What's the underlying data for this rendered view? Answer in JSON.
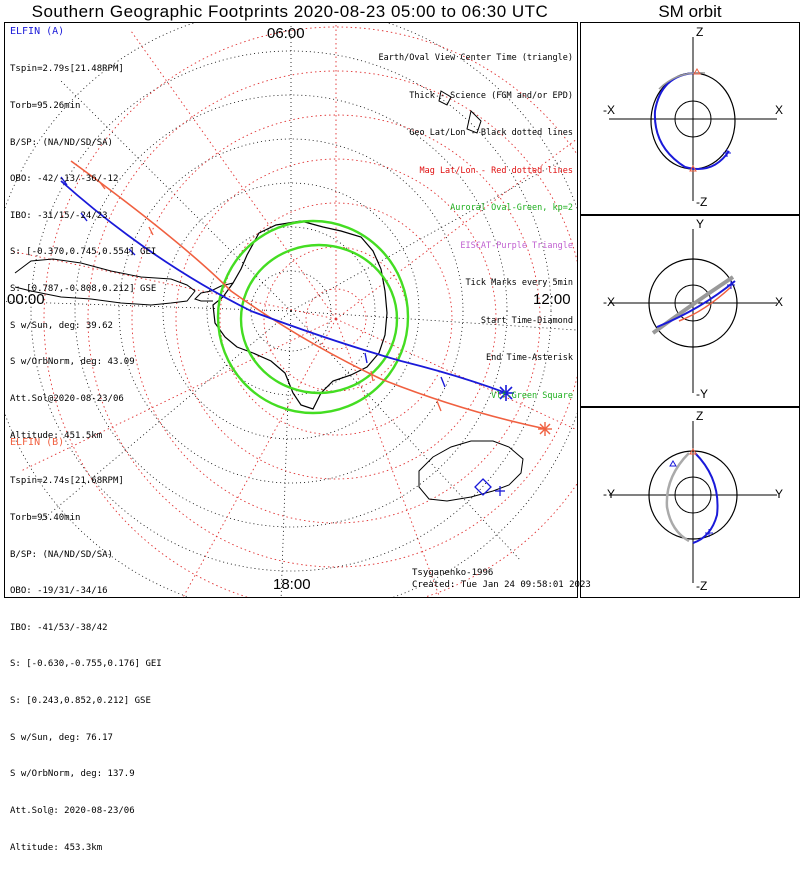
{
  "title": "Southern Geographic Footprints 2020-08-23 05:00 to 06:30 UTC",
  "sm_title": "SM orbit",
  "mlt_labels": {
    "top": "06:00",
    "left": "00:00",
    "right": "12:00",
    "bottom": "18:00"
  },
  "elfin_a": {
    "name": "ELFIN (A)",
    "color": "#1a1ad9",
    "lines": [
      "Tspin=2.79s[21.48RPM]",
      "Torb=95.26min",
      "B/SP: (NA/ND/SD/SA)",
      "OBO: -42/-13/-36/-12",
      "IBO: -31/15/-24/23",
      "S: [-0.370,0.745,0.554] GEI",
      "S: [0.787,-0.808,0.212] GSE",
      "S w/Sun, deg: 39.62",
      "S w/OrbNorm, deg: 43.09",
      "Att.Sol@2020-08-23/06",
      "Altitude: 451.5km"
    ]
  },
  "elfin_b": {
    "name": "ELFIN (B)",
    "color": "#f06040",
    "lines": [
      "Tspin=2.74s[21.68RPM]",
      "Torb=95.40min",
      "B/SP: (NA/ND/SD/SA)",
      "OBO: -19/31/-34/16",
      "IBO: -41/53/-38/42",
      "S: [-0.630,-0.755,0.176] GEI",
      "S: [0.243,0.852,0.212] GSE",
      "S w/Sun, deg: 76.17",
      "S w/OrbNorm, deg: 137.9",
      "Att.Sol@: 2020-08-23/06",
      "Altitude: 453.3km"
    ]
  },
  "legend": [
    {
      "text": "Earth/Oval View Center Time (triangle)",
      "color": "#000000"
    },
    {
      "text": "Thick - Science (FGM and/or EPD)",
      "color": "#000000"
    },
    {
      "text": "Geo Lat/Lon - Black dotted lines",
      "color": "#000000"
    },
    {
      "text": "Mag Lat/Lon - Red dotted lines",
      "color": "#e01010"
    },
    {
      "text": "Auroral Oval-Green, kp=2",
      "color": "#20b020"
    },
    {
      "text": "EISCAT-Purple Triangle",
      "color": "#c060d0"
    },
    {
      "text": "Tick Marks every 5min",
      "color": "#000000"
    },
    {
      "text": "Start Time-Diamond",
      "color": "#000000"
    },
    {
      "text": "End Time-Asterisk",
      "color": "#000000"
    },
    {
      "text": "Vlf-Green Square",
      "color": "#20b020"
    }
  ],
  "credit": "Tsyganenko-1996",
  "created": "Created: Tue Jan 24 09:58:01 2023",
  "sm_panels": [
    {
      "top": "Z",
      "bottom": "-Z",
      "left": "-X",
      "right": "X"
    },
    {
      "top": "Y",
      "bottom": "-Y",
      "left": "-X",
      "right": "X"
    },
    {
      "top": "Z",
      "bottom": "-Z",
      "left": "-Y",
      "right": "Y"
    }
  ],
  "colors": {
    "a": "#1a1ad9",
    "b": "#f06040",
    "oval": "#44dd22",
    "maggrid": "#e03030",
    "vlf": "#20b020"
  }
}
